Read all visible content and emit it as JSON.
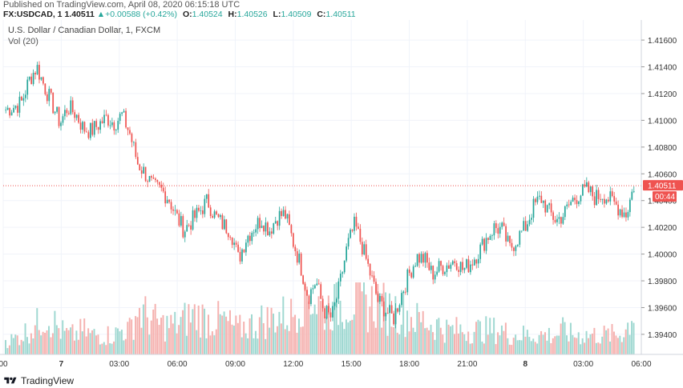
{
  "header": {
    "published": "Published on TradingView.com, April 08, 2020 06:15:18 UTC",
    "symbol": "FX:USDCAD, 1",
    "last": "1.40511",
    "arrow": "▲",
    "change": "+0.00588 (+0.42%)",
    "o_key": "O:",
    "o": "1.40524",
    "h_key": "H:",
    "h": "1.40526",
    "l_key": "L:",
    "l": "1.40509",
    "c_key": "C:",
    "c": "1.40511"
  },
  "chart_title": "U.S. Dollar / Canadian Dollar, 1, FXCM",
  "vol_label": "Vol (20)",
  "price_tag": "1.40511",
  "time_tag": "00:44",
  "footer_brand": "TradingView",
  "colors": {
    "up": "#26a69a",
    "down": "#ef5350",
    "vol_up": "#9fd8d1",
    "vol_down": "#f5b1af",
    "tag": "#ef5350",
    "grid": "#f0f3fa"
  },
  "chart_data": {
    "type": "line",
    "title": "U.S. Dollar / Canadian Dollar, 1, FXCM",
    "ylim": [
      1.3925,
      1.4175
    ],
    "y_ticks": [
      "1.41600",
      "1.41400",
      "1.41200",
      "1.41000",
      "1.40800",
      "1.40600",
      "1.40400",
      "1.40200",
      "1.40000",
      "1.39800",
      "1.39600",
      "1.39400"
    ],
    "x_ticks": [
      "00",
      "7",
      "03:00",
      "06:00",
      "09:00",
      "12:00",
      "15:00",
      "18:00",
      "21:00",
      "8",
      "03:00",
      "06:00"
    ],
    "series": [
      {
        "values": [
          1.4108,
          1.411,
          1.4113,
          1.413,
          1.414,
          1.4125,
          1.4112,
          1.4098,
          1.411,
          1.4105,
          1.4094,
          1.4092,
          1.4097,
          1.4102,
          1.4098,
          1.4104,
          1.409,
          1.4068,
          1.406,
          1.405,
          1.4048,
          1.4042,
          1.4028,
          1.4018,
          1.4025,
          1.4032,
          1.404,
          1.4028,
          1.4022,
          1.4018,
          1.3996,
          1.4012,
          1.402,
          1.4026,
          1.4018,
          1.4028,
          1.403,
          1.401,
          1.3992,
          1.3968,
          1.398,
          1.3958,
          1.3952,
          1.3975,
          1.4005,
          1.4022,
          1.4005,
          1.3985,
          1.3965,
          1.3958,
          1.3952,
          1.397,
          1.3985,
          1.3998,
          1.3996,
          1.3985,
          1.399,
          1.3992,
          1.3996,
          1.3988,
          1.3994,
          1.4002,
          1.4012,
          1.402,
          1.4018,
          1.4004,
          1.4012,
          1.402,
          1.4035,
          1.4042,
          1.4032,
          1.4025,
          1.403,
          1.404,
          1.4045,
          1.4048,
          1.4042,
          1.4045,
          1.404,
          1.4035,
          1.403,
          1.4051
        ]
      }
    ],
    "volume": [
      3,
      3,
      4,
      5,
      6,
      8,
      7,
      5,
      4,
      4,
      5,
      4,
      4,
      4,
      4,
      5,
      5,
      9,
      8,
      7,
      6,
      6,
      6,
      7,
      8,
      8,
      7,
      7,
      7,
      6,
      5,
      6,
      6,
      7,
      7,
      8,
      8,
      8,
      12,
      13,
      11,
      9,
      10,
      10,
      11,
      11,
      10,
      10,
      11,
      9,
      9,
      9,
      8,
      7,
      7,
      6,
      6,
      5,
      5,
      5,
      5,
      5,
      5,
      5,
      5,
      4,
      4,
      4,
      4,
      4,
      4,
      4,
      5,
      4,
      4,
      4,
      4,
      4,
      4,
      4,
      5,
      9
    ]
  }
}
